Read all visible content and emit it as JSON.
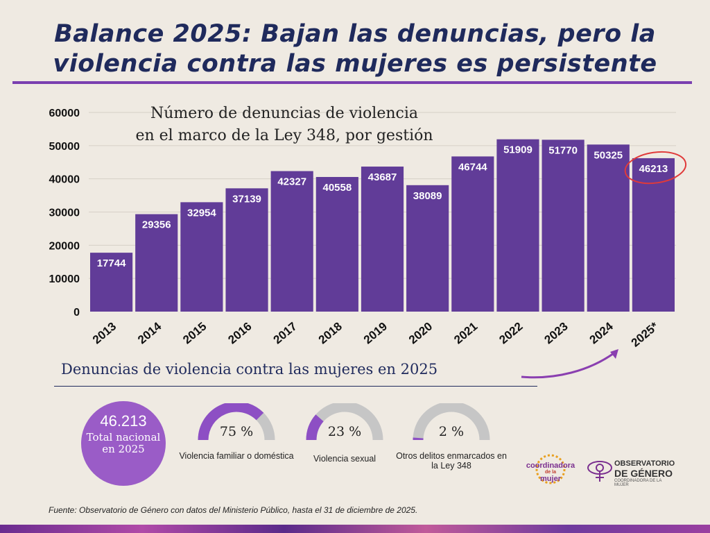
{
  "title": {
    "line1": "Balance 2025: Bajan las denuncias, pero la",
    "line2": "violencia contra las mujeres es persistente"
  },
  "chart_data": {
    "type": "bar",
    "title_line1": "Número de denuncias de violencia",
    "title_line2": "en el marco de la Ley 348, por gestión",
    "categories": [
      "2013",
      "2014",
      "2015",
      "2016",
      "2017",
      "2018",
      "2019",
      "2020",
      "2021",
      "2022",
      "2023",
      "2024",
      "2025*"
    ],
    "values": [
      17744,
      29356,
      32954,
      37139,
      42327,
      40558,
      43687,
      38089,
      46744,
      51909,
      51770,
      50325,
      46213
    ],
    "ylim": [
      0,
      60000
    ],
    "yticks": [
      0,
      10000,
      20000,
      30000,
      40000,
      50000,
      60000
    ],
    "grid": true,
    "bar_color": "#613c98",
    "highlight_category": "2025*"
  },
  "section": {
    "title": "Denuncias de violencia contra las mujeres en 2025"
  },
  "total": {
    "value": "46.213",
    "label": "Total nacional en 2025"
  },
  "breakdown": [
    {
      "percent": 75,
      "percent_text": "75 %",
      "label": "Violencia familiar o doméstica"
    },
    {
      "percent": 23,
      "percent_text": "23 %",
      "label": "Violencia sexual"
    },
    {
      "percent": 2,
      "percent_text": "2 %",
      "label": "Otros delitos enmarcados en la Ley 348"
    }
  ],
  "logos": {
    "coordinadora_line1": "coordinadora",
    "coordinadora_line2": "de la",
    "coordinadora_line3": "mujer",
    "observatorio_line1": "OBSERVATORIO",
    "observatorio_line2": "DE GÉNERO",
    "observatorio_line3": "COORDINADORA DE LA MUJER"
  },
  "source": "Fuente: Observatorio de Género con datos del Ministerio Público, hasta el 31 de diciembre de 2025.",
  "colors": {
    "background": "#efeae2",
    "title": "#1f2a5c",
    "accent": "#7a3fb0",
    "bar": "#613c98",
    "gauge_fill": "#8d4fc4",
    "gauge_track": "#c6c6c6",
    "circle": "#9a5cc7",
    "highlight": "#e03a3a"
  }
}
